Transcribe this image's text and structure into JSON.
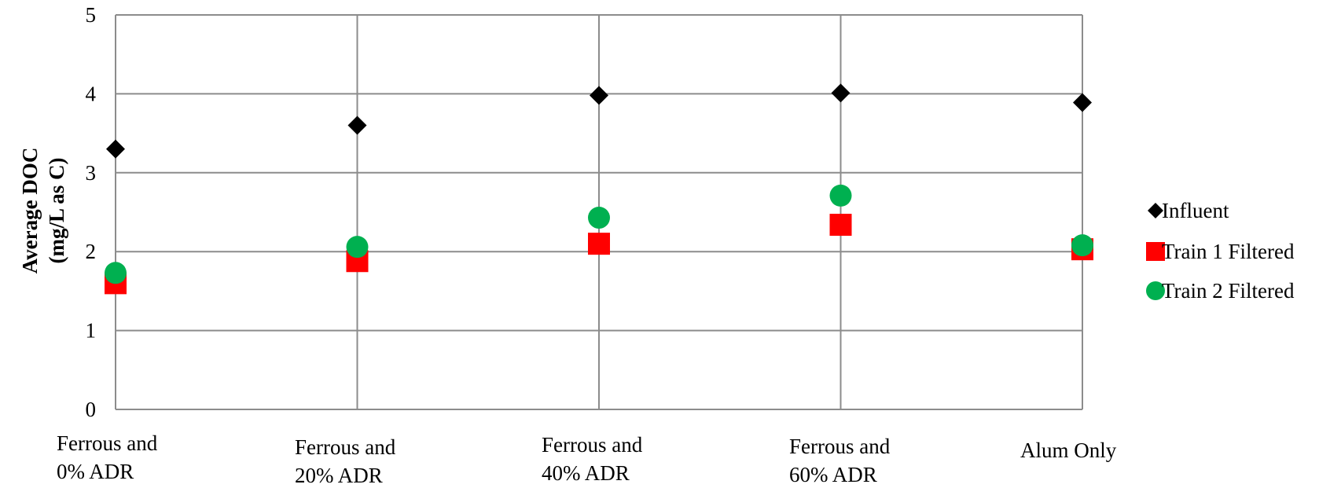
{
  "chart_data": {
    "type": "scatter",
    "title": "",
    "xlabel": "",
    "ylabel": [
      "Average DOC",
      "(mg/L as C)"
    ],
    "ylim": [
      0,
      5
    ],
    "yticks": [
      0,
      1,
      2,
      3,
      4,
      5
    ],
    "grid": true,
    "legend_position": "right",
    "categories": [
      [
        "Ferrous and",
        "0% ADR"
      ],
      [
        "Ferrous and",
        "20% ADR"
      ],
      [
        "Ferrous and",
        "40% ADR"
      ],
      [
        "Ferrous and",
        "60% ADR"
      ],
      [
        "Alum Only"
      ]
    ],
    "series": [
      {
        "name": "Influent",
        "marker": "diamond",
        "color": "#000000",
        "values": [
          3.3,
          3.6,
          3.98,
          4.01,
          3.89
        ]
      },
      {
        "name": "Train 1 Filtered",
        "marker": "square",
        "color": "#ff0000",
        "values": [
          1.6,
          1.88,
          2.1,
          2.34,
          2.03
        ]
      },
      {
        "name": "Train 2 Filtered",
        "marker": "circle",
        "color": "#00b050",
        "values": [
          1.73,
          2.06,
          2.43,
          2.71,
          2.08
        ]
      }
    ]
  }
}
